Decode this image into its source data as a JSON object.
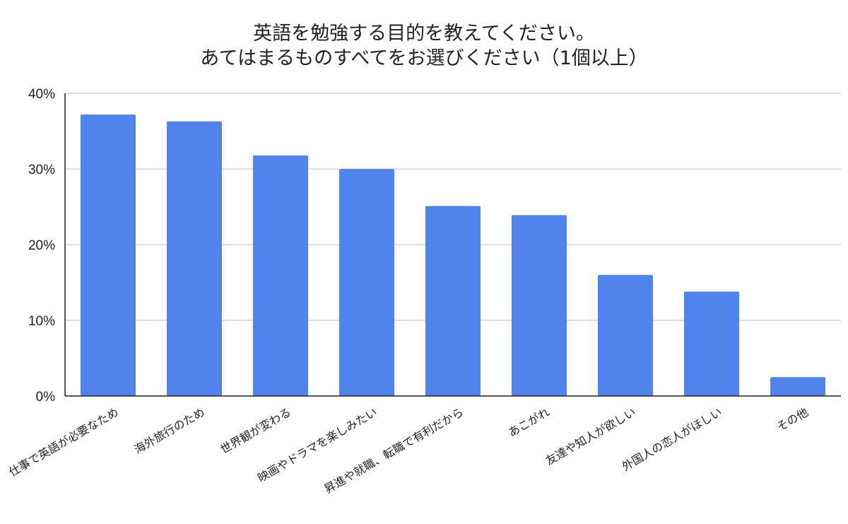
{
  "chart_data": {
    "type": "bar",
    "title": [
      "英語を勉強する目的を教えてください。",
      "あてはまるものすべてをお選びください（1個以上）"
    ],
    "categories": [
      "仕事で英語が必要なため",
      "海外旅行のため",
      "世界観が変わる",
      "映画やドラマを楽しみたい",
      "昇進や就職、転職で有利だから",
      "あこがれ",
      "友達や知人が欲しい",
      "外国人の恋人がほしい",
      "その他"
    ],
    "values": [
      37.2,
      36.3,
      31.8,
      30.0,
      25.1,
      23.9,
      16.0,
      13.8,
      2.5
    ],
    "yticks": [
      "0%",
      "10%",
      "20%",
      "30%",
      "40%"
    ],
    "ylim": [
      0,
      40
    ],
    "grid": true,
    "colors": {
      "bar": "#5083ec",
      "grid": "#cccccc",
      "axis": "#222222"
    }
  }
}
